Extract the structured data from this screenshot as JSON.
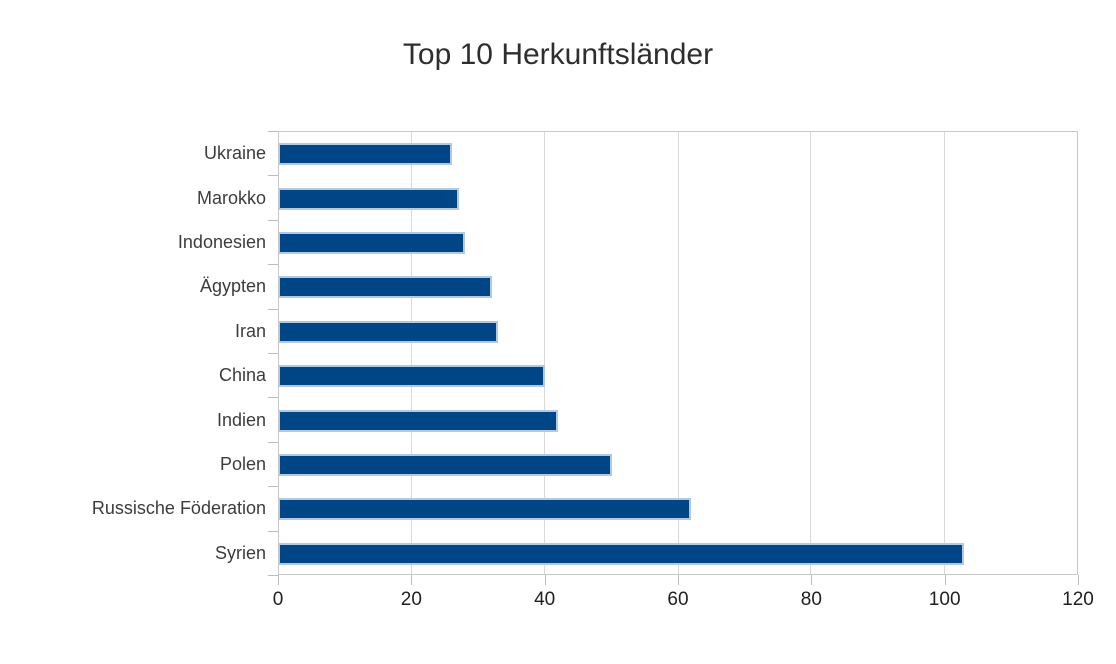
{
  "chart_data": {
    "type": "bar",
    "orientation": "horizontal",
    "title": "Top 10 Herkunftsländer",
    "categories": [
      "Ukraine",
      "Marokko",
      "Indonesien",
      "Ägypten",
      "Iran",
      "China",
      "Indien",
      "Polen",
      "Russische Föderation",
      "Syrien"
    ],
    "values": [
      26,
      27,
      28,
      32,
      33,
      40,
      42,
      50,
      62,
      103
    ],
    "xlabel": "",
    "ylabel": "",
    "xlim": [
      0,
      120
    ],
    "xticks": [
      0,
      20,
      40,
      60,
      80,
      100,
      120
    ],
    "grid": "vertical",
    "legend": "none",
    "colors": {
      "bar_fill": "#004586",
      "bar_border": "#b3c9e2",
      "gridline": "#d9d9d9",
      "axis_line": "#c9c9c9",
      "tick_mark": "#bdbdbd",
      "tick_label_text": "#1f1f1f",
      "category_text": "#3c3c3c",
      "title_text": "#2e2e2e"
    }
  }
}
